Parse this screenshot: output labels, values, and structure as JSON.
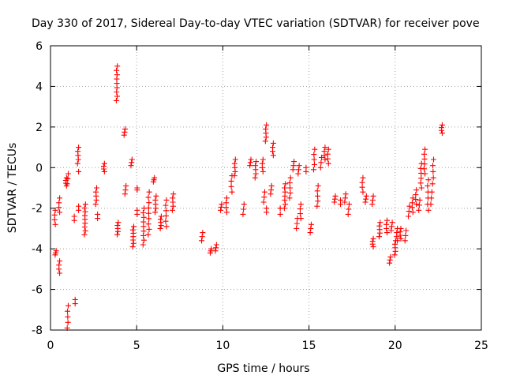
{
  "chart_data": {
    "type": "scatter",
    "title": "Day 330 of 2017, Sidereal Day-to-day VTEC variation (SDTVAR) for receiver pove",
    "xlabel": "GPS time / hours",
    "ylabel": "SDTVAR / TECUs",
    "xlim": [
      0,
      25
    ],
    "ylim": [
      -8,
      6
    ],
    "xticks": [
      0,
      5,
      10,
      15,
      20,
      25
    ],
    "yticks": [
      -8,
      -6,
      -4,
      -2,
      0,
      2,
      4,
      6
    ],
    "grid": true,
    "marker": "plus",
    "color": "#ff0000",
    "clusters": [
      {
        "x": 0.25,
        "y0": -2.1,
        "y1": -2.8,
        "n": 4
      },
      {
        "x": 0.3,
        "y0": -4.1,
        "y1": -4.3,
        "n": 3
      },
      {
        "x": 0.5,
        "y0": -1.5,
        "y1": -2.2,
        "n": 4
      },
      {
        "x": 0.5,
        "y0": -4.6,
        "y1": -5.2,
        "n": 4
      },
      {
        "x": 0.9,
        "y0": -0.5,
        "y1": -0.9,
        "n": 4
      },
      {
        "x": 1.0,
        "y0": -0.3,
        "y1": -0.8,
        "n": 3
      },
      {
        "x": 1.0,
        "y0": -6.8,
        "y1": -7.9,
        "n": 5
      },
      {
        "x": 1.35,
        "y0": -2.4,
        "y1": -2.6,
        "n": 2
      },
      {
        "x": 1.4,
        "y0": -6.5,
        "y1": -6.7,
        "n": 2
      },
      {
        "x": 1.6,
        "y0": 1.0,
        "y1": 0.2,
        "n": 5
      },
      {
        "x": 1.6,
        "y0": -0.2,
        "y1": -0.3,
        "n": 1
      },
      {
        "x": 1.6,
        "y0": -1.9,
        "y1": -2.1,
        "n": 2
      },
      {
        "x": 2.0,
        "y0": -1.8,
        "y1": -3.3,
        "n": 9
      },
      {
        "x": 2.65,
        "y0": -1.0,
        "y1": -1.8,
        "n": 5
      },
      {
        "x": 2.7,
        "y0": -2.3,
        "y1": -2.5,
        "n": 2
      },
      {
        "x": 3.1,
        "y0": 0.2,
        "y1": -0.2,
        "n": 4
      },
      {
        "x": 3.85,
        "y0": 5.0,
        "y1": 3.3,
        "n": 9
      },
      {
        "x": 3.9,
        "y0": -2.7,
        "y1": -3.3,
        "n": 5
      },
      {
        "x": 4.3,
        "y0": 1.9,
        "y1": 1.6,
        "n": 3
      },
      {
        "x": 4.35,
        "y0": -0.9,
        "y1": -1.3,
        "n": 3
      },
      {
        "x": 4.7,
        "y0": 0.4,
        "y1": 0.1,
        "n": 3
      },
      {
        "x": 4.8,
        "y0": -2.9,
        "y1": -3.9,
        "n": 7
      },
      {
        "x": 5.0,
        "y0": -1.0,
        "y1": -1.1,
        "n": 2
      },
      {
        "x": 5.0,
        "y0": -2.1,
        "y1": -2.3,
        "n": 2
      },
      {
        "x": 5.4,
        "y0": -2.0,
        "y1": -3.8,
        "n": 9
      },
      {
        "x": 5.7,
        "y0": -1.2,
        "y1": -3.3,
        "n": 9
      },
      {
        "x": 6.0,
        "y0": -0.5,
        "y1": -0.7,
        "n": 3
      },
      {
        "x": 6.1,
        "y0": -1.4,
        "y1": -2.2,
        "n": 5
      },
      {
        "x": 6.4,
        "y0": -2.4,
        "y1": -3.0,
        "n": 5
      },
      {
        "x": 6.7,
        "y0": -1.6,
        "y1": -2.9,
        "n": 6
      },
      {
        "x": 7.1,
        "y0": -1.3,
        "y1": -2.1,
        "n": 5
      },
      {
        "x": 8.8,
        "y0": -3.2,
        "y1": -3.6,
        "n": 3
      },
      {
        "x": 9.3,
        "y0": -4.0,
        "y1": -4.2,
        "n": 3
      },
      {
        "x": 9.6,
        "y0": -3.8,
        "y1": -4.1,
        "n": 3
      },
      {
        "x": 9.9,
        "y0": -1.8,
        "y1": -2.1,
        "n": 3
      },
      {
        "x": 10.2,
        "y0": -1.5,
        "y1": -2.2,
        "n": 4
      },
      {
        "x": 10.5,
        "y0": -0.4,
        "y1": -1.2,
        "n": 4
      },
      {
        "x": 10.7,
        "y0": 0.4,
        "y1": -0.4,
        "n": 5
      },
      {
        "x": 11.2,
        "y0": -1.8,
        "y1": -2.3,
        "n": 3
      },
      {
        "x": 11.6,
        "y0": 0.4,
        "y1": 0.1,
        "n": 3
      },
      {
        "x": 11.9,
        "y0": 0.3,
        "y1": -0.5,
        "n": 5
      },
      {
        "x": 12.3,
        "y0": 0.4,
        "y1": -0.2,
        "n": 4
      },
      {
        "x": 12.4,
        "y0": -1.2,
        "y1": -1.7,
        "n": 3
      },
      {
        "x": 12.5,
        "y0": 2.1,
        "y1": 1.3,
        "n": 5
      },
      {
        "x": 12.5,
        "y0": -2.0,
        "y1": -2.2,
        "n": 2
      },
      {
        "x": 12.9,
        "y0": 1.2,
        "y1": 0.6,
        "n": 4
      },
      {
        "x": 12.8,
        "y0": -0.9,
        "y1": -1.3,
        "n": 3
      },
      {
        "x": 13.6,
        "y0": -0.8,
        "y1": -2.0,
        "n": 7
      },
      {
        "x": 13.3,
        "y0": -2.0,
        "y1": -2.3,
        "n": 2
      },
      {
        "x": 13.9,
        "y0": -0.5,
        "y1": -1.5,
        "n": 5
      },
      {
        "x": 14.1,
        "y0": 0.3,
        "y1": -0.1,
        "n": 3
      },
      {
        "x": 14.3,
        "y0": -2.5,
        "y1": -3.0,
        "n": 3
      },
      {
        "x": 14.5,
        "y0": -1.8,
        "y1": -2.5,
        "n": 4
      },
      {
        "x": 14.4,
        "y0": 0.1,
        "y1": -0.3,
        "n": 3
      },
      {
        "x": 14.8,
        "y0": 0.0,
        "y1": -0.2,
        "n": 2
      },
      {
        "x": 15.1,
        "y0": -2.8,
        "y1": -3.2,
        "n": 3
      },
      {
        "x": 15.3,
        "y0": 0.9,
        "y1": -0.1,
        "n": 5
      },
      {
        "x": 15.5,
        "y0": -0.9,
        "y1": -1.9,
        "n": 5
      },
      {
        "x": 15.7,
        "y0": 0.5,
        "y1": 0.0,
        "n": 3
      },
      {
        "x": 15.9,
        "y0": 1.0,
        "y1": 0.4,
        "n": 4
      },
      {
        "x": 16.1,
        "y0": 0.9,
        "y1": 0.2,
        "n": 4
      },
      {
        "x": 16.5,
        "y0": -1.4,
        "y1": -1.7,
        "n": 3
      },
      {
        "x": 16.8,
        "y0": -1.6,
        "y1": -1.8,
        "n": 2
      },
      {
        "x": 17.1,
        "y0": -1.3,
        "y1": -1.7,
        "n": 3
      },
      {
        "x": 17.3,
        "y0": -1.8,
        "y1": -2.3,
        "n": 3
      },
      {
        "x": 18.1,
        "y0": -0.5,
        "y1": -1.2,
        "n": 4
      },
      {
        "x": 18.3,
        "y0": -1.4,
        "y1": -1.7,
        "n": 3
      },
      {
        "x": 18.7,
        "y0": -1.4,
        "y1": -1.8,
        "n": 3
      },
      {
        "x": 18.7,
        "y0": -3.5,
        "y1": -3.9,
        "n": 4
      },
      {
        "x": 19.1,
        "y0": -2.7,
        "y1": -3.4,
        "n": 5
      },
      {
        "x": 19.5,
        "y0": -2.6,
        "y1": -3.2,
        "n": 4
      },
      {
        "x": 19.7,
        "y0": -4.4,
        "y1": -4.7,
        "n": 3
      },
      {
        "x": 19.8,
        "y0": -2.7,
        "y1": -3.1,
        "n": 3
      },
      {
        "x": 20.0,
        "y0": -3.6,
        "y1": -4.3,
        "n": 5
      },
      {
        "x": 20.1,
        "y0": -3.0,
        "y1": -3.6,
        "n": 4
      },
      {
        "x": 20.3,
        "y0": -3.0,
        "y1": -3.5,
        "n": 4
      },
      {
        "x": 20.6,
        "y0": -3.1,
        "y1": -3.6,
        "n": 3
      },
      {
        "x": 20.8,
        "y0": -1.9,
        "y1": -2.4,
        "n": 3
      },
      {
        "x": 21.0,
        "y0": -1.5,
        "y1": -2.2,
        "n": 4
      },
      {
        "x": 21.2,
        "y0": -1.1,
        "y1": -1.8,
        "n": 4
      },
      {
        "x": 21.4,
        "y0": -1.6,
        "y1": -2.1,
        "n": 3
      },
      {
        "x": 21.5,
        "y0": 0.2,
        "y1": -1.0,
        "n": 6
      },
      {
        "x": 21.7,
        "y0": 0.9,
        "y1": -0.3,
        "n": 6
      },
      {
        "x": 21.9,
        "y0": -0.6,
        "y1": -2.1,
        "n": 6
      },
      {
        "x": 22.1,
        "y0": -1.2,
        "y1": -1.8,
        "n": 3
      },
      {
        "x": 22.2,
        "y0": 0.4,
        "y1": -0.8,
        "n": 5
      },
      {
        "x": 22.7,
        "y0": 2.1,
        "y1": 1.7,
        "n": 4
      }
    ]
  }
}
